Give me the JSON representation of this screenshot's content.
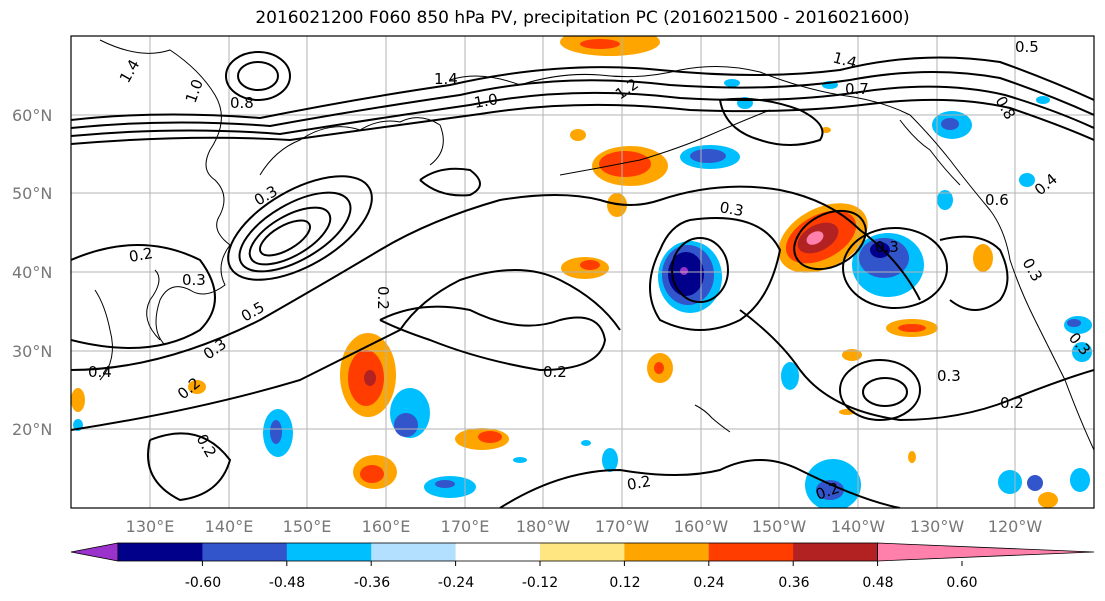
{
  "title": "2016021200 F060 850 hPa PV, precipitation PC (2016021500 - 2016021600)",
  "lat_labels": [
    "60°N",
    "50°N",
    "40°N",
    "30°N",
    "20°N"
  ],
  "lon_labels": [
    "130°E",
    "140°E",
    "150°E",
    "160°E",
    "170°E",
    "180°W",
    "170°W",
    "160°W",
    "150°W",
    "140°W",
    "130°W",
    "120°W"
  ],
  "contour_labels": [
    "1.4",
    "1.0",
    "0.8",
    "1.4",
    "1.0",
    "1.2",
    "1.4",
    "0.7",
    "0.3",
    "0.2",
    "0.3",
    "0.5",
    "0.3",
    "0.4",
    "0.2",
    "0.2",
    "0.2",
    "0.3",
    "0.3",
    "0.2",
    "0.3",
    "0.2",
    "0.2",
    "0.6",
    "0.4",
    "0.3",
    "0.3",
    "0.8",
    "0.2",
    "0.5"
  ],
  "colorbar": {
    "ticks": [
      "-0.60",
      "-0.48",
      "-0.36",
      "-0.24",
      "-0.12",
      "0.12",
      "0.24",
      "0.36",
      "0.48",
      "0.60"
    ],
    "colors": [
      "#9933cc",
      "#00008b",
      "#3355cc",
      "#00bfff",
      "#b3e0ff",
      "#ffffff",
      "#ffe680",
      "#ffa500",
      "#ff3d00",
      "#b22222",
      "#ff80aa"
    ]
  }
}
